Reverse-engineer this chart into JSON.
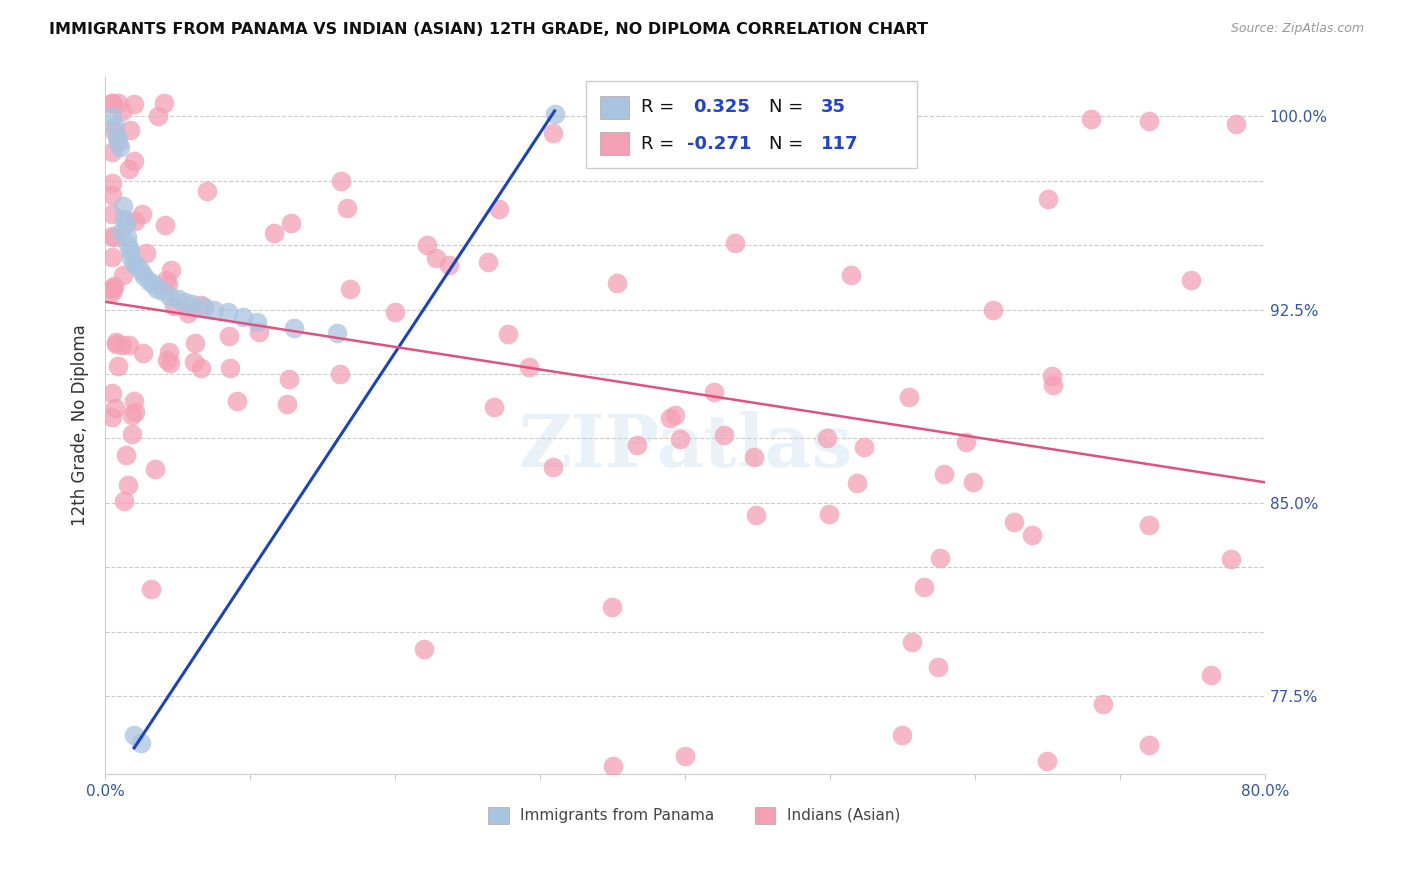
{
  "title": "IMMIGRANTS FROM PANAMA VS INDIAN (ASIAN) 12TH GRADE, NO DIPLOMA CORRELATION CHART",
  "source": "Source: ZipAtlas.com",
  "ylabel": "12th Grade, No Diploma",
  "xmin": 0.0,
  "xmax": 0.8,
  "ymin": 0.745,
  "ymax": 1.015,
  "x_tick_positions": [
    0.0,
    0.1,
    0.2,
    0.3,
    0.4,
    0.5,
    0.6,
    0.7,
    0.8
  ],
  "x_tick_labels": [
    "0.0%",
    "",
    "",
    "",
    "",
    "",
    "",
    "",
    "80.0%"
  ],
  "y_tick_positions": [
    0.775,
    0.8,
    0.825,
    0.85,
    0.875,
    0.9,
    0.925,
    0.95,
    0.975,
    1.0
  ],
  "y_tick_labels": [
    "77.5%",
    "",
    "",
    "85.0%",
    "",
    "",
    "92.5%",
    "",
    "",
    "100.0%"
  ],
  "blue_R": 0.325,
  "blue_N": 35,
  "pink_R": -0.271,
  "pink_N": 117,
  "blue_color": "#aac4df",
  "pink_color": "#f4a0b4",
  "blue_line_color": "#1a44bb",
  "pink_line_color": "#e05080",
  "watermark": "ZIPatlas",
  "blue_line_x0": 0.02,
  "blue_line_y0": 0.755,
  "blue_line_x1": 0.31,
  "blue_line_y1": 1.002,
  "pink_line_x0": 0.0,
  "pink_line_y0": 0.928,
  "pink_line_x1": 0.8,
  "pink_line_y1": 0.858,
  "bottom_legend_labels": [
    "Immigrants from Panama",
    "Indians (Asian)"
  ]
}
